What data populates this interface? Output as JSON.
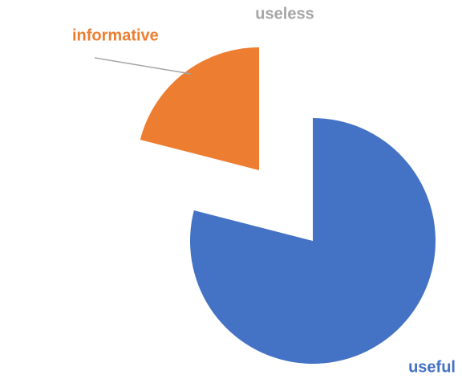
{
  "chart_data": {
    "type": "pie",
    "categories": [
      "useful",
      "informative",
      "useless"
    ],
    "values": [
      79,
      21,
      0
    ],
    "colors": [
      "#4472c4",
      "#ed7d31",
      "#a5a5a5"
    ]
  }
}
